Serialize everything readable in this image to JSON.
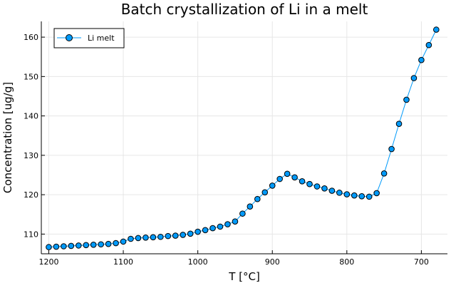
{
  "chart_data": {
    "type": "line",
    "title": "Batch crystallization of Li in a melt",
    "xlabel": "T [°C]",
    "ylabel": "Concentration [ug/g]",
    "x_reversed": true,
    "xlim": [
      1210,
      665
    ],
    "ylim": [
      105,
      164
    ],
    "xticks": [
      1200,
      1100,
      1000,
      900,
      800,
      700
    ],
    "yticks": [
      110,
      120,
      130,
      140,
      150,
      160
    ],
    "grid": true,
    "legend": "top-left",
    "series": [
      {
        "name": "Li melt",
        "color": "#009AFA",
        "x": [
          1200,
          1190,
          1180,
          1170,
          1160,
          1150,
          1140,
          1130,
          1120,
          1110,
          1100,
          1090,
          1080,
          1070,
          1060,
          1050,
          1040,
          1030,
          1020,
          1010,
          1000,
          990,
          980,
          970,
          960,
          950,
          940,
          930,
          920,
          910,
          900,
          890,
          880,
          870,
          860,
          850,
          840,
          830,
          820,
          810,
          800,
          790,
          780,
          770,
          760,
          750,
          740,
          730,
          720,
          710,
          700,
          690,
          680
        ],
        "y": [
          106.7,
          106.8,
          106.9,
          107.0,
          107.1,
          107.2,
          107.3,
          107.4,
          107.5,
          107.7,
          108.1,
          108.8,
          109.0,
          109.1,
          109.2,
          109.3,
          109.5,
          109.6,
          109.8,
          110.1,
          110.6,
          111.0,
          111.5,
          111.9,
          112.5,
          113.2,
          115.2,
          117.0,
          118.9,
          120.6,
          122.3,
          124.0,
          125.3,
          124.4,
          123.4,
          122.7,
          122.1,
          121.6,
          121.0,
          120.5,
          120.1,
          119.8,
          119.6,
          119.5,
          120.4,
          125.4,
          131.6,
          138.0,
          144.1,
          149.6,
          154.2,
          158.0,
          161.9
        ]
      }
    ]
  }
}
